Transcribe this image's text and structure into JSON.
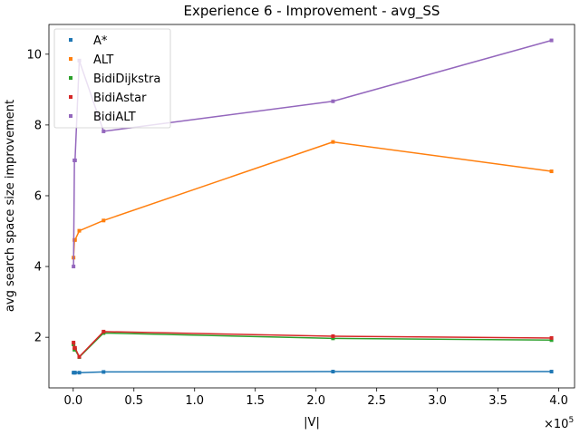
{
  "chart_data": {
    "type": "line",
    "title": "Experience 6 - Improvement - avg_SS",
    "xlabel": "|V|",
    "ylabel": "avg search space size improvement",
    "x_offset_label": "×10^5",
    "x_offset_base": "×10",
    "x_offset_exp": "5",
    "xlim": [
      -20000,
      413000
    ],
    "ylim": [
      0.57,
      10.84
    ],
    "x_ticks": [
      0,
      50000,
      100000,
      150000,
      200000,
      250000,
      300000,
      350000,
      400000
    ],
    "x_tick_labels": [
      "0.0",
      "0.5",
      "1.0",
      "1.5",
      "2.0",
      "2.5",
      "3.0",
      "3.5",
      "4.0"
    ],
    "y_ticks": [
      2,
      4,
      6,
      8,
      10
    ],
    "y_tick_labels": [
      "2",
      "4",
      "6",
      "8",
      "10"
    ],
    "grid": false,
    "legend_position": "top-left",
    "x": [
      264,
      1000,
      1500,
      5000,
      25000,
      214000,
      394000
    ],
    "series": [
      {
        "name": "A*",
        "color": "#1f77b4",
        "values": [
          1.0,
          1.0,
          1.0,
          1.0,
          1.02,
          1.03,
          1.03
        ]
      },
      {
        "name": "ALT",
        "color": "#ff7f0e",
        "values": [
          4.25,
          4.75,
          4.75,
          5.01,
          5.3,
          7.52,
          6.69
        ]
      },
      {
        "name": "BidiDijkstra",
        "color": "#2ca02c",
        "values": [
          1.8,
          1.65,
          1.65,
          1.44,
          2.12,
          1.97,
          1.92
        ]
      },
      {
        "name": "BidiAstar",
        "color": "#d62728",
        "values": [
          1.85,
          1.7,
          1.7,
          1.45,
          2.16,
          2.03,
          1.98
        ]
      },
      {
        "name": "BidiALT",
        "color": "#9467bd",
        "values": [
          4.0,
          7.0,
          7.0,
          9.82,
          7.82,
          8.67,
          10.39
        ]
      }
    ]
  }
}
